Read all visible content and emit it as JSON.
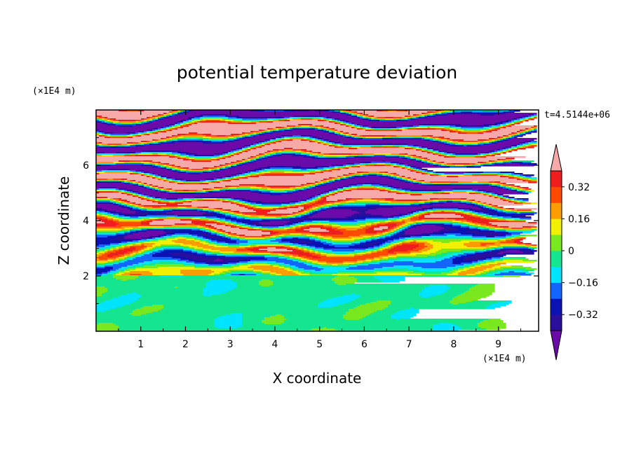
{
  "chart_data": {
    "type": "heatmap",
    "title": "potential temperature deviation",
    "xlabel": "X coordinate",
    "ylabel": "Z coordinate",
    "x_unit": "(×1E4 m)",
    "y_unit": "(×1E4 m)",
    "time_label": "t=4.5144e+06",
    "xlim": [
      0,
      9.9
    ],
    "ylim": [
      0,
      8
    ],
    "x_ticks": [
      1,
      2,
      3,
      4,
      5,
      6,
      7,
      8,
      9
    ],
    "x_tick_labels": [
      "1",
      "2",
      "3",
      "4",
      "5",
      "6",
      "7",
      "8",
      "9"
    ],
    "y_ticks": [
      2,
      4,
      6
    ],
    "y_tick_labels": [
      "2",
      "4",
      "6"
    ],
    "colorbar": {
      "levels": [
        -0.4,
        -0.32,
        -0.24,
        -0.16,
        -0.08,
        0,
        0.08,
        0.16,
        0.24,
        0.32,
        0.4
      ],
      "colors": [
        "#6a0aa8",
        "#2a0f9c",
        "#0a12b4",
        "#1464ff",
        "#00e4ff",
        "#14e690",
        "#7ae81e",
        "#f0f000",
        "#ff9c00",
        "#ff4a00",
        "#ee1e1e",
        "#f7a8a8"
      ],
      "tick_values": [
        -0.32,
        -0.16,
        0,
        0.16,
        0.32
      ],
      "tick_labels": [
        "−0.32",
        "−0.16",
        "0",
        "0.16",
        "0.32"
      ],
      "extend": "both"
    },
    "regions": [
      {
        "z_range": [
          0,
          2
        ],
        "description_levels": [
          -0.08,
          0.08
        ],
        "dominant": "near zero"
      },
      {
        "z_range": [
          2,
          4.8
        ],
        "description_levels": [
          -0.4,
          0.4
        ],
        "dominant": "mixed"
      },
      {
        "z_range": [
          4.8,
          8
        ],
        "description_levels": [
          -0.4,
          0.4
        ],
        "dominant": "bands of extremes"
      }
    ]
  }
}
